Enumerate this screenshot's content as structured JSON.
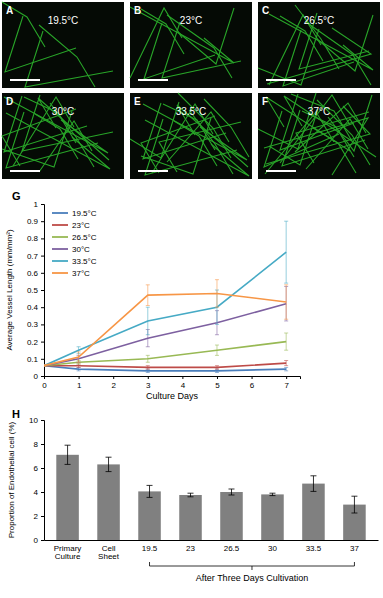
{
  "images": [
    {
      "label": "A",
      "text": "19.5°C"
    },
    {
      "label": "B",
      "text": "23°C"
    },
    {
      "label": "C",
      "text": "26.5°C"
    },
    {
      "label": "D",
      "text": "30°C"
    },
    {
      "label": "E",
      "text": "33.5°C"
    },
    {
      "label": "F",
      "text": "37°C"
    }
  ],
  "chart_data": [
    {
      "type": "line",
      "title": "G",
      "x_label": "Culture Days",
      "y_label": "Average Vessel Length (mm/mm²)",
      "x": [
        0,
        1,
        3,
        5,
        7
      ],
      "xlim": [
        0,
        7.4
      ],
      "xticks": [
        0,
        1,
        2,
        3,
        4,
        5,
        6,
        7
      ],
      "ylim": [
        0,
        1
      ],
      "yticks": [
        0,
        0.1,
        0.2,
        0.3,
        0.4,
        0.5,
        0.6,
        0.7,
        0.8,
        0.9,
        1
      ],
      "grid": false,
      "legend": "upper left",
      "marker": "none",
      "series": [
        {
          "name": "19.5°C",
          "color": "#4a7ebb",
          "values": [
            0.06,
            0.04,
            0.03,
            0.03,
            0.04
          ],
          "errors": [
            0.005,
            0.01,
            0.01,
            0.01,
            0.01
          ]
        },
        {
          "name": "23°C",
          "color": "#be4b48",
          "values": [
            0.06,
            0.06,
            0.05,
            0.05,
            0.075
          ],
          "errors": [
            0.005,
            0.01,
            0.01,
            0.01,
            0.015
          ]
        },
        {
          "name": "26.5°C",
          "color": "#98b954",
          "values": [
            0.06,
            0.08,
            0.1,
            0.15,
            0.2
          ],
          "errors": [
            0.005,
            0.01,
            0.02,
            0.03,
            0.05
          ]
        },
        {
          "name": "30°C",
          "color": "#7d60a0",
          "values": [
            0.06,
            0.1,
            0.22,
            0.31,
            0.42
          ],
          "errors": [
            0.005,
            0.02,
            0.05,
            0.07,
            0.1
          ]
        },
        {
          "name": "33.5°C",
          "color": "#46aac5",
          "values": [
            0.06,
            0.15,
            0.32,
            0.4,
            0.72
          ],
          "errors": [
            0.005,
            0.02,
            0.08,
            0.1,
            0.18
          ]
        },
        {
          "name": "37°C",
          "color": "#f79646",
          "values": [
            0.06,
            0.11,
            0.47,
            0.48,
            0.43
          ],
          "errors": [
            0.005,
            0.03,
            0.06,
            0.08,
            0.1
          ]
        }
      ]
    },
    {
      "type": "bar",
      "title": "H",
      "y_label": "Proportion of Endothelial cell (%)",
      "categories": [
        "Primary Culture",
        "Cell Sheet",
        "19.5",
        "23",
        "26.5",
        "30",
        "33.5",
        "37"
      ],
      "values": [
        7.1,
        6.3,
        4.05,
        3.75,
        4.0,
        3.8,
        4.7,
        2.95
      ],
      "errors": [
        0.8,
        0.6,
        0.5,
        0.15,
        0.25,
        0.1,
        0.65,
        0.7
      ],
      "color": "#808080",
      "ylim": [
        0,
        10
      ],
      "yticks": [
        0,
        2,
        4,
        6,
        8,
        10
      ],
      "grid": false,
      "annotations": [
        "After Three Days Cultivation"
      ]
    }
  ]
}
